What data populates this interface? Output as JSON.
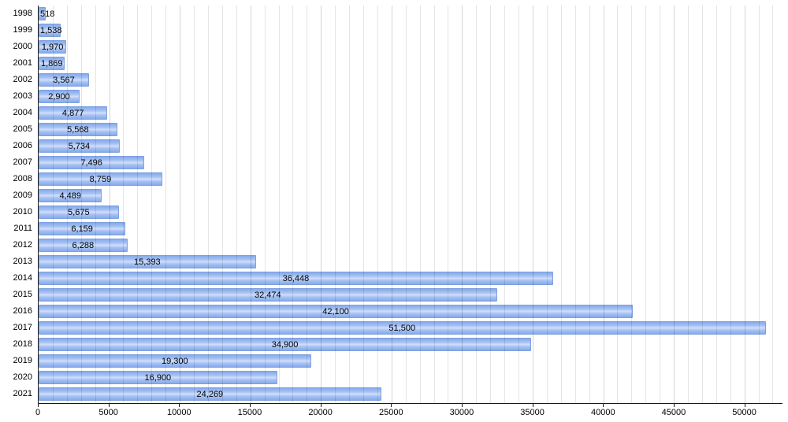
{
  "chart_data": {
    "type": "bar",
    "orientation": "horizontal",
    "title": "",
    "xlabel": "",
    "ylabel": "",
    "categories": [
      "1998",
      "1999",
      "2000",
      "2001",
      "2002",
      "2003",
      "2004",
      "2005",
      "2006",
      "2007",
      "2008",
      "2009",
      "2010",
      "2011",
      "2012",
      "2013",
      "2014",
      "2015",
      "2016",
      "2017",
      "2018",
      "2019",
      "2020",
      "2021"
    ],
    "values": [
      518,
      1538,
      1970,
      1869,
      3567,
      2900,
      4877,
      5568,
      5734,
      7496,
      8759,
      4489,
      5675,
      6159,
      6288,
      15393,
      36448,
      32474,
      42100,
      51500,
      34900,
      19300,
      16900,
      24269
    ],
    "value_labels": [
      "518",
      "1,538",
      "1,970",
      "1,869",
      "3,567",
      "2,900",
      "4,877",
      "5,568",
      "5,734",
      "7,496",
      "8,759",
      "4,489",
      "5,675",
      "6,159",
      "6,288",
      "15,393",
      "36,448",
      "32,474",
      "42,100",
      "51,500",
      "34,900",
      "19,300",
      "16,900",
      "24,269"
    ],
    "x_ticks": [
      0,
      5000,
      10000,
      15000,
      20000,
      25000,
      30000,
      35000,
      40000,
      45000,
      50000
    ],
    "x_tick_labels": [
      "0",
      "5000",
      "10000",
      "15000",
      "20000",
      "25000",
      "30000",
      "35000",
      "40000",
      "45000",
      "50000"
    ],
    "xlim": [
      0,
      52700
    ],
    "grid": true,
    "grid_step": 1000,
    "grid_major_step": 5000,
    "legend_position": "none",
    "colors": {
      "bar_fill": "#a7c3f3",
      "bar_border": "#7fa0de",
      "gridline": "#d9d9d9",
      "axis": "#1a1a1a",
      "label_text": "#000000",
      "background": "#ffffff"
    }
  }
}
